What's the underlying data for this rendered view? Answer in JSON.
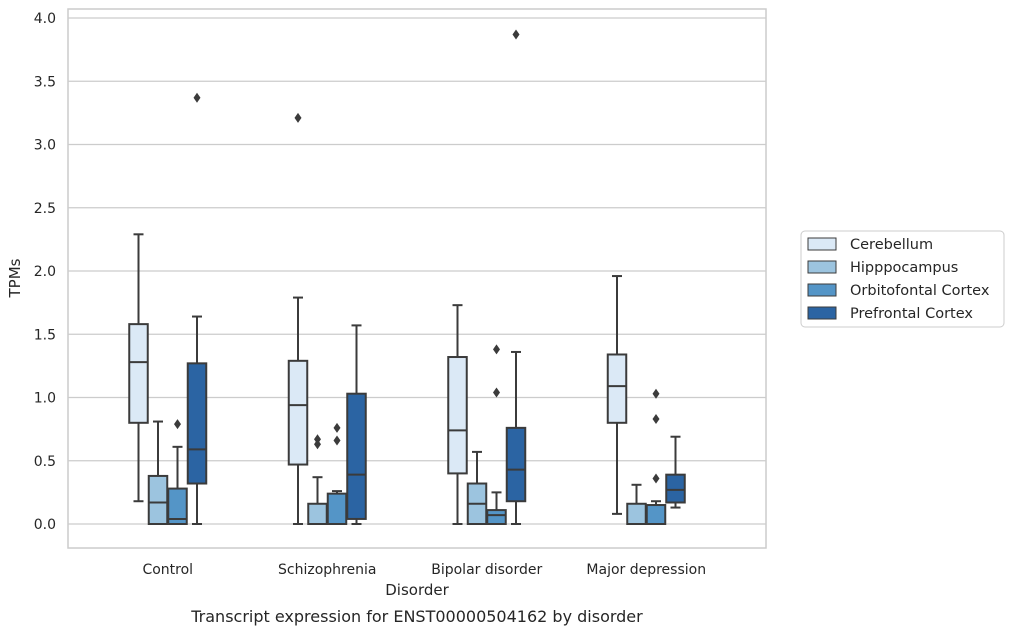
{
  "chart_data": {
    "type": "box",
    "xlabel": "Disorder",
    "ylabel": "TPMs",
    "caption": "Transcript expression for ENST00000504162 by disorder",
    "ylim": [
      -0.19,
      4.07
    ],
    "yticks": [
      "0.0",
      "0.5",
      "1.0",
      "1.5",
      "2.0",
      "2.5",
      "3.0",
      "3.5",
      "4.0"
    ],
    "grid": true,
    "legend_position": "right",
    "categories": [
      "Control",
      "Schizophrenia",
      "Bipolar disorder",
      "Major depression"
    ],
    "series": [
      {
        "name": "Cerebellum",
        "color": "#dbe9f6",
        "boxes": [
          {
            "whislo": 0.18,
            "q1": 0.8,
            "med": 1.28,
            "q3": 1.58,
            "whishi": 2.29,
            "fliers": []
          },
          {
            "whislo": 0.0,
            "q1": 0.47,
            "med": 0.94,
            "q3": 1.29,
            "whishi": 1.79,
            "fliers": [
              3.21
            ]
          },
          {
            "whislo": 0.0,
            "q1": 0.4,
            "med": 0.74,
            "q3": 1.32,
            "whishi": 1.73,
            "fliers": []
          },
          {
            "whislo": 0.08,
            "q1": 0.8,
            "med": 1.09,
            "q3": 1.34,
            "whishi": 1.96,
            "fliers": []
          }
        ]
      },
      {
        "name": "Hipppocampus",
        "color": "#9cc4df",
        "boxes": [
          {
            "whislo": 0.0,
            "q1": 0.0,
            "med": 0.17,
            "q3": 0.38,
            "whishi": 0.81,
            "fliers": []
          },
          {
            "whislo": 0.0,
            "q1": 0.0,
            "med": 0.0,
            "q3": 0.16,
            "whishi": 0.37,
            "fliers": [
              0.63,
              0.67
            ]
          },
          {
            "whislo": 0.0,
            "q1": 0.0,
            "med": 0.16,
            "q3": 0.32,
            "whishi": 0.57,
            "fliers": []
          },
          {
            "whislo": 0.0,
            "q1": 0.0,
            "med": 0.0,
            "q3": 0.16,
            "whishi": 0.31,
            "fliers": []
          }
        ]
      },
      {
        "name": "Orbitofontal Cortex",
        "color": "#5495c7",
        "boxes": [
          {
            "whislo": 0.0,
            "q1": 0.0,
            "med": 0.04,
            "q3": 0.28,
            "whishi": 0.61,
            "fliers": [
              0.79
            ]
          },
          {
            "whislo": 0.0,
            "q1": 0.0,
            "med": 0.0,
            "q3": 0.24,
            "whishi": 0.26,
            "fliers": [
              0.66,
              0.76
            ]
          },
          {
            "whislo": 0.0,
            "q1": 0.0,
            "med": 0.07,
            "q3": 0.11,
            "whishi": 0.25,
            "fliers": [
              1.04,
              1.38
            ]
          },
          {
            "whislo": 0.0,
            "q1": 0.0,
            "med": 0.0,
            "q3": 0.15,
            "whishi": 0.18,
            "fliers": [
              0.36,
              0.83,
              1.03
            ]
          }
        ]
      },
      {
        "name": "Prefrontal Cortex",
        "color": "#2b64a3",
        "boxes": [
          {
            "whislo": 0.0,
            "q1": 0.32,
            "med": 0.59,
            "q3": 1.27,
            "whishi": 1.64,
            "fliers": [
              3.37
            ]
          },
          {
            "whislo": 0.0,
            "q1": 0.04,
            "med": 0.39,
            "q3": 1.03,
            "whishi": 1.57,
            "fliers": []
          },
          {
            "whislo": 0.0,
            "q1": 0.18,
            "med": 0.43,
            "q3": 0.76,
            "whishi": 1.36,
            "fliers": [
              3.87
            ]
          },
          {
            "whislo": 0.13,
            "q1": 0.17,
            "med": 0.27,
            "q3": 0.39,
            "whishi": 0.69,
            "fliers": []
          }
        ]
      }
    ]
  }
}
